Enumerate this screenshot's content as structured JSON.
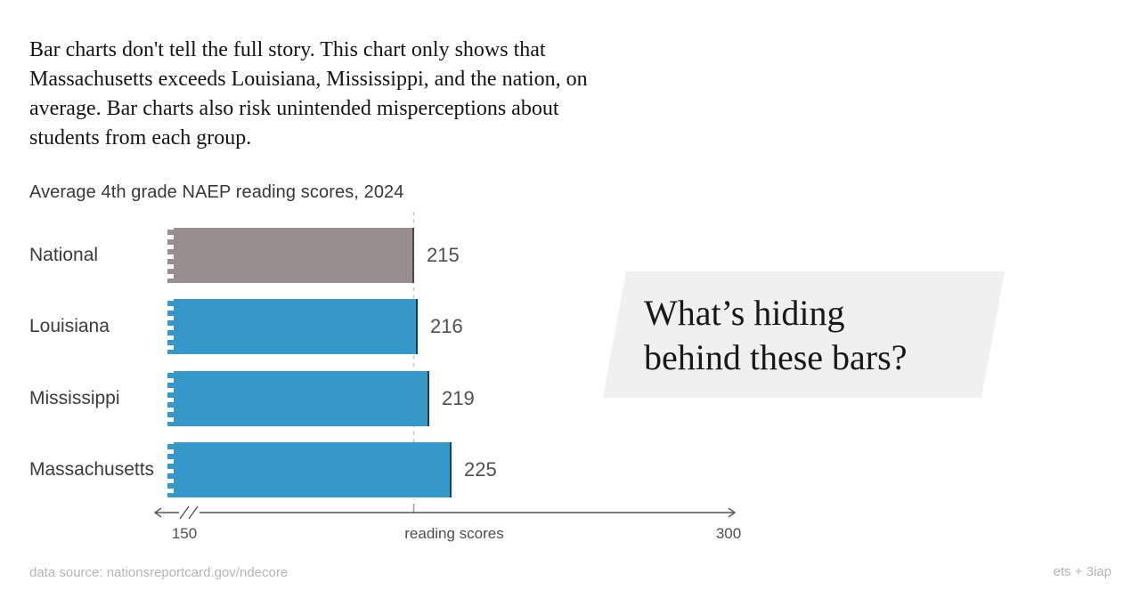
{
  "intro": {
    "lines": [
      "Bar charts don't tell the full story. This chart only shows that",
      "Massachusetts exceeds Louisiana, Mississippi, and the nation, on",
      "average. Bar charts also risk unintended misperceptions about",
      "students from each group."
    ]
  },
  "chart_data": {
    "type": "bar",
    "orientation": "horizontal",
    "title": "Average 4th grade NAEP reading scores, 2024",
    "categories": [
      "National",
      "Louisiana",
      "Mississippi",
      "Massachusetts"
    ],
    "values": [
      215,
      216,
      219,
      225
    ],
    "bar_colors": [
      "#978f8f",
      "#3697c9",
      "#3697c9",
      "#3697c9"
    ],
    "bar_edge_colors": [
      "#4f4848",
      "#15415a",
      "#15415a",
      "#15415a"
    ],
    "xlabel": "reading scores",
    "xlim": [
      150,
      300
    ],
    "x_tick_labels": [
      "150",
      "300"
    ],
    "reference_line": {
      "value": 215,
      "style": "dashed"
    },
    "axis_break_at_min": true,
    "grid": "off",
    "legend": "none"
  },
  "callout": {
    "lines": [
      "What’s hiding",
      "behind these bars?"
    ],
    "background": "#f0f0f0"
  },
  "footer": {
    "source": "data source: nationsreportcard.gov/ndecore",
    "credit": "ets + 3iap"
  },
  "colors": {
    "bar_blue": "#3697c9",
    "bar_gray": "#978f8f",
    "reference_line": "#c7c7c7",
    "axis": "#555555",
    "value_label": "#4f4f4f",
    "category_label": "#3b3b3b",
    "callout_bg": "#f0f0f0"
  }
}
